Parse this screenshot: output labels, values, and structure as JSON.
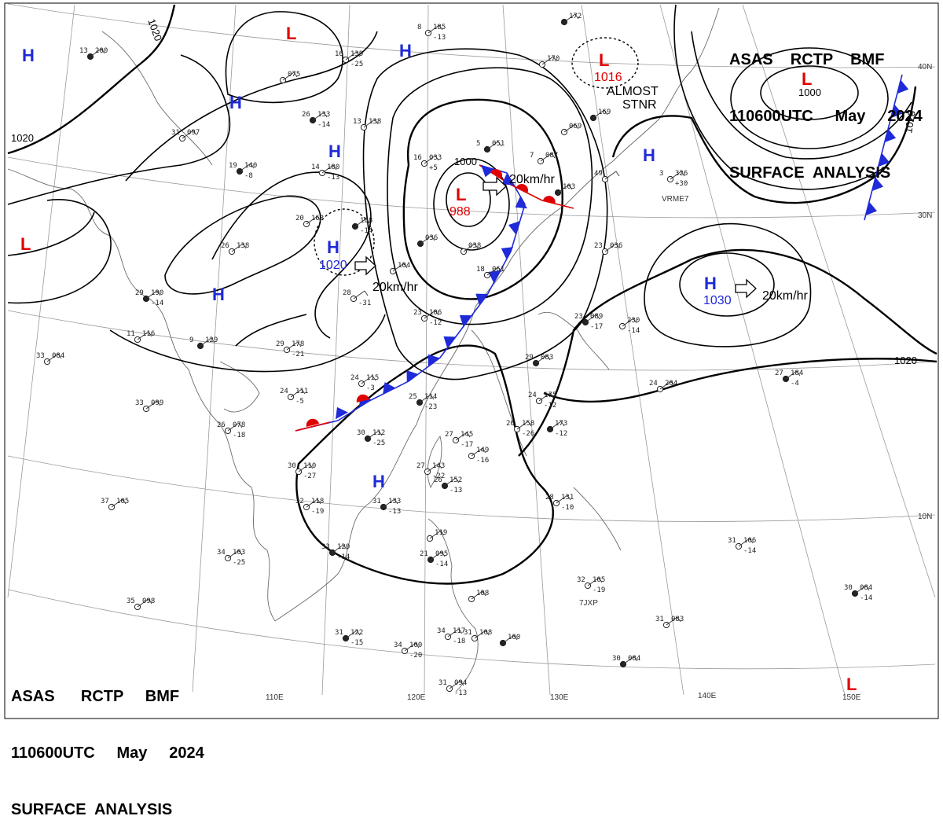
{
  "header": {
    "line1": "ASAS    RCTP    BMF",
    "line2": "110600UTC     May     2024",
    "line3": "SURFACE  ANALYSIS"
  },
  "footer": {
    "line1": "ASAS      RCTP     BMF",
    "line2": "110600UTC     May     2024",
    "line3": "SURFACE  ANALYSIS"
  },
  "longitudes": [
    "110E",
    "120E",
    "130E",
    "140E",
    "150E"
  ],
  "latitudes": [
    "40N",
    "30N",
    "10N"
  ],
  "pressure_centers": [
    {
      "type": "L",
      "symbol": "L",
      "value": "988"
    },
    {
      "type": "L",
      "symbol": "L",
      "value": "1016",
      "note_1": "ALMOST",
      "note_2": "STNR"
    },
    {
      "type": "L",
      "symbol": "L",
      "value": "1000"
    },
    {
      "type": "H",
      "symbol": "H",
      "value": "1030"
    },
    {
      "type": "H",
      "symbol": "H",
      "value": "1020"
    },
    {
      "type": "L",
      "symbol": "L"
    },
    {
      "type": "L",
      "symbol": "L"
    },
    {
      "type": "L",
      "symbol": "L"
    },
    {
      "type": "H",
      "symbol": "H"
    },
    {
      "type": "H",
      "symbol": "H"
    },
    {
      "type": "H",
      "symbol": "H"
    },
    {
      "type": "H",
      "symbol": "H"
    },
    {
      "type": "H",
      "symbol": "H"
    },
    {
      "type": "H",
      "symbol": "H"
    },
    {
      "type": "H",
      "symbol": "H"
    }
  ],
  "isobar_labels": [
    "1020",
    "1020",
    "1020",
    "1020",
    "1000",
    "1000"
  ],
  "movements": [
    {
      "speed": "20km/hr"
    },
    {
      "speed": "20km/hr"
    },
    {
      "speed": "20km/hr"
    }
  ],
  "ship_ids": [
    "VRME7",
    "7JXP"
  ],
  "colors": {
    "low": "#e00000",
    "high": "#1f2ad8",
    "cold_front": "#1f2ad8",
    "warm_front": "#e00000",
    "isobar": "#000000",
    "coastline": "#666666",
    "graticule": "#999999"
  },
  "stations": [
    {
      "t": "13",
      "p": "200"
    },
    {
      "t": "16",
      "p": "139",
      "d": "-25"
    },
    {
      "t": "8",
      "p": "185",
      "d": "-13"
    },
    {
      "t": "",
      "p": "172"
    },
    {
      "t": "",
      "p": "170"
    },
    {
      "t": "",
      "p": "075"
    },
    {
      "t": "26",
      "p": "133",
      "d": "-14"
    },
    {
      "t": "31",
      "p": "097"
    },
    {
      "t": "13",
      "p": "138"
    },
    {
      "t": "19",
      "p": "140",
      "d": "-8"
    },
    {
      "t": "14",
      "p": "180",
      "d": "-13"
    },
    {
      "t": "16",
      "p": "033",
      "d": "+5"
    },
    {
      "t": "5",
      "p": "051"
    },
    {
      "t": "7",
      "p": "087"
    },
    {
      "t": "",
      "p": "069"
    },
    {
      "t": "",
      "p": "169"
    },
    {
      "t": "3",
      "p": "326",
      "d": "+30"
    },
    {
      "t": "20",
      "p": "163"
    },
    {
      "t": "",
      "p": "168",
      "d": "-14"
    },
    {
      "t": "26",
      "p": "138"
    },
    {
      "t": "",
      "p": "104"
    },
    {
      "t": "",
      "p": "036"
    },
    {
      "t": "",
      "p": "038"
    },
    {
      "t": "18",
      "p": "061"
    },
    {
      "t": "",
      "p": "103"
    },
    {
      "t": "23",
      "p": "036"
    },
    {
      "t": "49",
      "p": ""
    },
    {
      "t": "29",
      "p": "190",
      "d": "-14"
    },
    {
      "t": "28",
      "p": "",
      "d": "-31"
    },
    {
      "t": "23",
      "p": "106",
      "d": "-12"
    },
    {
      "t": "23",
      "p": "089",
      "d": "-17"
    },
    {
      "t": "",
      "p": "230",
      "d": "-14"
    },
    {
      "t": "11",
      "p": "116"
    },
    {
      "t": "9",
      "p": "129"
    },
    {
      "t": "29",
      "p": "178",
      "d": "-21"
    },
    {
      "t": "33",
      "p": "084"
    },
    {
      "t": "29",
      "p": "083"
    },
    {
      "t": "24",
      "p": "115",
      "d": "-3"
    },
    {
      "t": "24",
      "p": "111",
      "d": "-5"
    },
    {
      "t": "25",
      "p": "114",
      "d": "-23"
    },
    {
      "t": "24",
      "p": "175",
      "d": "-12"
    },
    {
      "t": "24",
      "p": "204"
    },
    {
      "t": "27",
      "p": "184",
      "d": "-4"
    },
    {
      "t": "33",
      "p": "099"
    },
    {
      "t": "26",
      "p": "078",
      "d": "-18"
    },
    {
      "t": "30",
      "p": "112",
      "d": "-25"
    },
    {
      "t": "27",
      "p": "145",
      "d": "-17"
    },
    {
      "t": "26",
      "p": "158",
      "d": "-26"
    },
    {
      "t": "",
      "p": "173",
      "d": "-12"
    },
    {
      "t": "",
      "p": "149",
      "d": "-16"
    },
    {
      "t": "27",
      "p": "143",
      "d": "-22"
    },
    {
      "t": "26",
      "p": "152",
      "d": "-13"
    },
    {
      "t": "30",
      "p": "110",
      "d": "-27"
    },
    {
      "t": "32",
      "p": "118",
      "d": "-19"
    },
    {
      "t": "31",
      "p": "133",
      "d": "-13"
    },
    {
      "t": "37",
      "p": "105"
    },
    {
      "t": "28",
      "p": "131",
      "d": "-10"
    },
    {
      "t": "33",
      "p": "120",
      "d": "-14"
    },
    {
      "t": "34",
      "p": "103",
      "d": "-25"
    },
    {
      "t": "",
      "p": "119"
    },
    {
      "t": "21",
      "p": "095",
      "d": "-14"
    },
    {
      "t": "31",
      "p": "106",
      "d": "-14"
    },
    {
      "t": "32",
      "p": "105",
      "d": "-19"
    },
    {
      "t": "30",
      "p": "084",
      "d": "-14"
    },
    {
      "t": "35",
      "p": "098"
    },
    {
      "t": "",
      "p": "108"
    },
    {
      "t": "31",
      "p": "122",
      "d": "-15"
    },
    {
      "t": "34",
      "p": "117",
      "d": "-18"
    },
    {
      "t": "31",
      "p": "108"
    },
    {
      "t": "",
      "p": "100"
    },
    {
      "t": "34",
      "p": "100",
      "d": "-20"
    },
    {
      "t": "31",
      "p": "083"
    },
    {
      "t": "30",
      "p": "084"
    },
    {
      "t": "31",
      "p": "094",
      "d": "-13"
    }
  ]
}
